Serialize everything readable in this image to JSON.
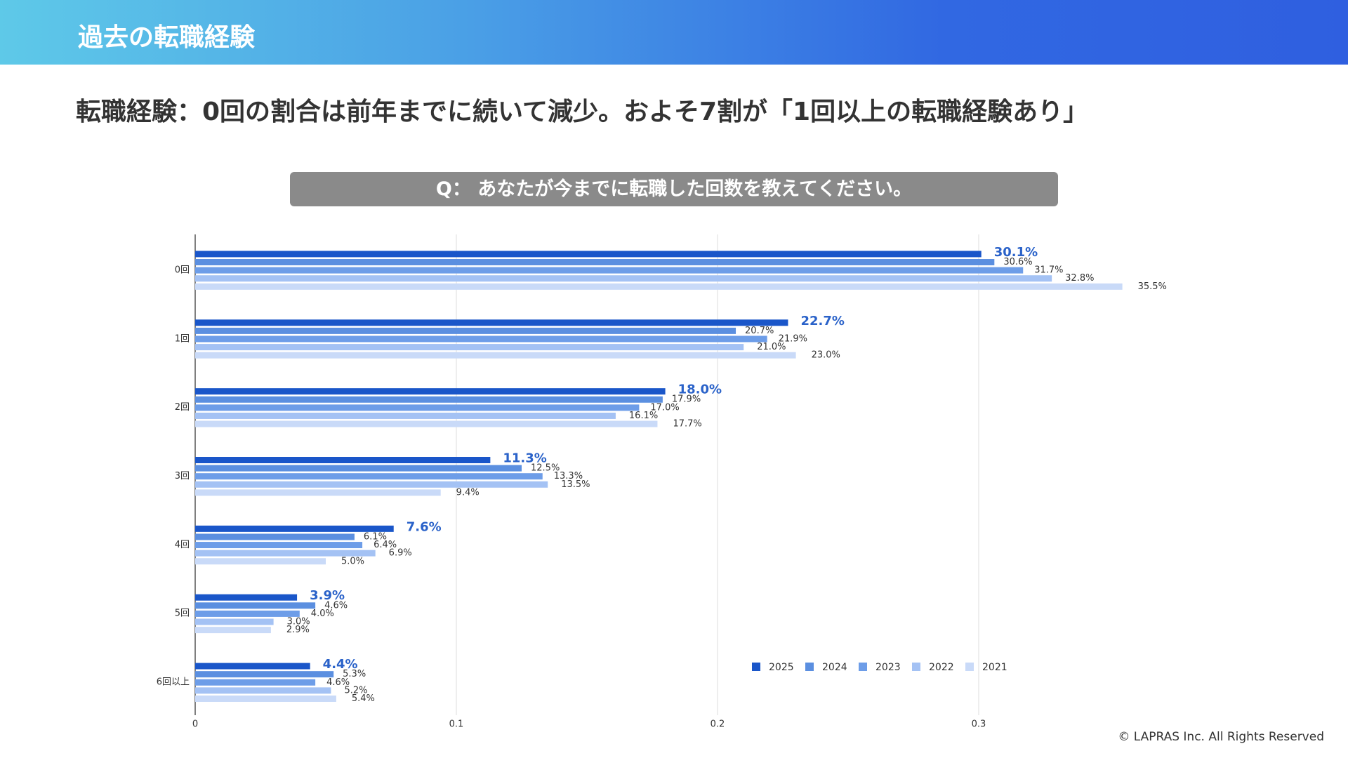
{
  "header": {
    "title": "過去の転職経験"
  },
  "subtitle": "転職経験：0回の割合は前年までに続いて減少。およそ7割が「1回以上の転職経験あり」",
  "question": "Q： あなたが今までに転職した回数を教えてください。",
  "footer": "© LAPRAS Inc. All Rights Reserved",
  "chart_data": {
    "type": "hbar",
    "categories": [
      "0回",
      "1回",
      "2回",
      "3回",
      "4回",
      "5回",
      "6回以上"
    ],
    "series": [
      {
        "name": "2025",
        "color": "#1a56c9",
        "values": [
          0.301,
          0.227,
          0.18,
          0.113,
          0.076,
          0.039,
          0.044
        ],
        "value_labels": [
          "30.1%",
          "22.7%",
          "18.0%",
          "11.3%",
          "7.6%",
          "3.9%",
          "4.4%"
        ]
      },
      {
        "name": "2024",
        "color": "#5b8fe0",
        "values": [
          0.306,
          0.207,
          0.179,
          0.125,
          0.061,
          0.046,
          0.053
        ],
        "value_labels": [
          "30.6%",
          "20.7%",
          "17.9%",
          "12.5%",
          "6.1%",
          "4.6%",
          "5.3%"
        ]
      },
      {
        "name": "2023",
        "color": "#6d9de8",
        "values": [
          0.317,
          0.219,
          0.17,
          0.133,
          0.064,
          0.04,
          0.046
        ],
        "value_labels": [
          "31.7%",
          "21.9%",
          "17.0%",
          "13.3%",
          "6.4%",
          "4.0%",
          "4.6%"
        ]
      },
      {
        "name": "2022",
        "color": "#a4c2f4",
        "values": [
          0.328,
          0.21,
          0.161,
          0.135,
          0.069,
          0.03,
          0.052
        ],
        "value_labels": [
          "32.8%",
          "21.0%",
          "16.1%",
          "13.5%",
          "6.9%",
          "3.0%",
          "5.2%"
        ]
      },
      {
        "name": "2021",
        "color": "#c9daf8",
        "values": [
          0.355,
          0.23,
          0.177,
          0.094,
          0.05,
          0.029,
          0.054
        ],
        "value_labels": [
          "35.5%",
          "23.0%",
          "17.7%",
          "9.4%",
          "5.0%",
          "2.9%",
          "5.4%"
        ]
      }
    ],
    "xlim": [
      0,
      0.37
    ],
    "xticks": [
      0,
      0.1,
      0.2,
      0.3
    ],
    "grid": true,
    "legend": "bottom-right"
  }
}
